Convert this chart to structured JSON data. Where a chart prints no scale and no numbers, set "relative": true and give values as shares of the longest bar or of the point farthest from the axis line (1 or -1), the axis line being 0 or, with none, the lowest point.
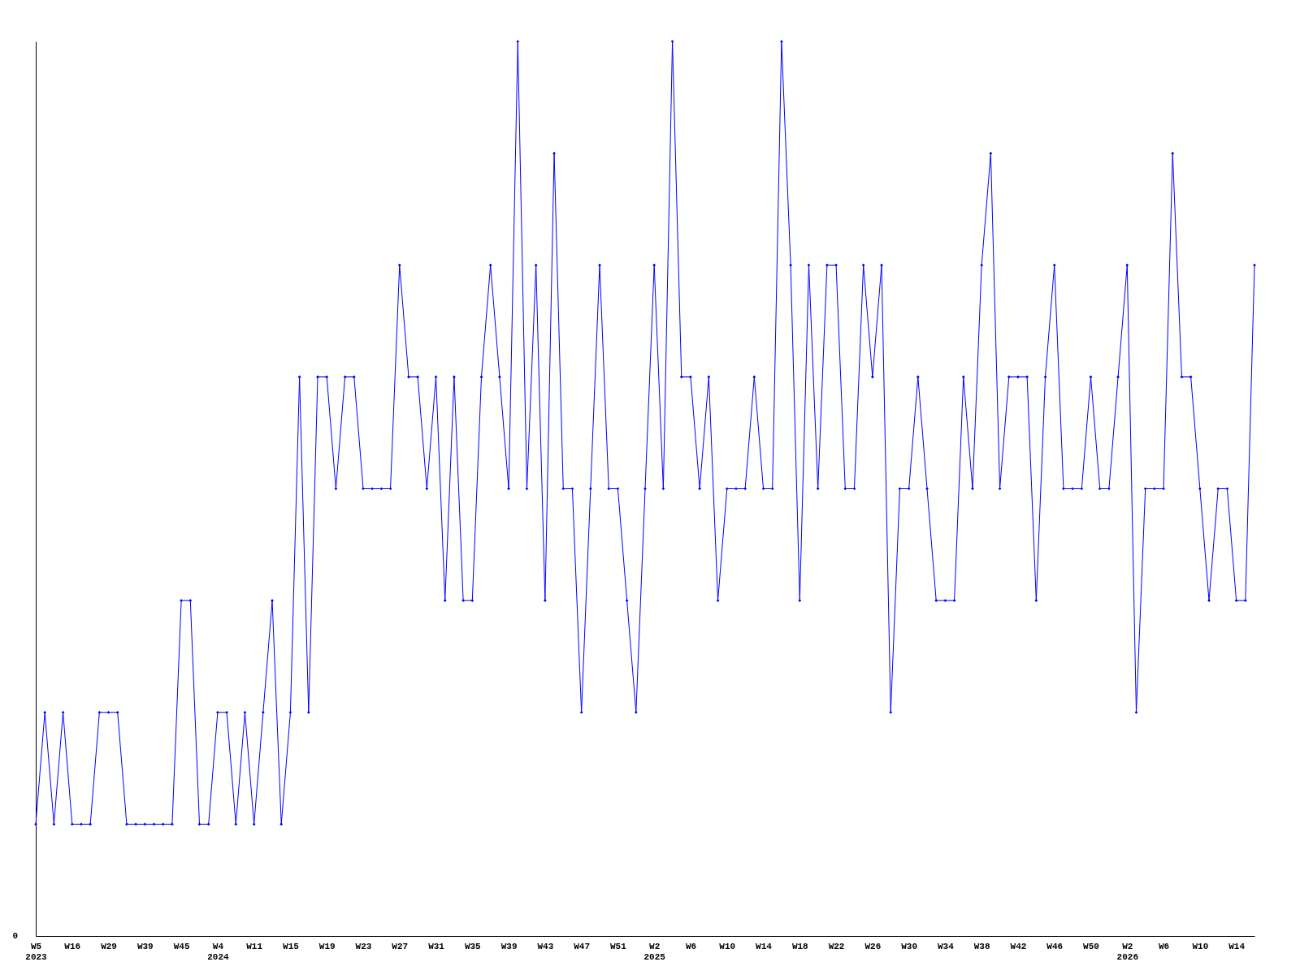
{
  "chart_data": {
    "type": "line",
    "relative": true,
    "marker": "diamond",
    "line_style": "solid",
    "grid": false,
    "categories": [
      "W5\n2023",
      null,
      null,
      null,
      "W16",
      null,
      null,
      null,
      "W29",
      null,
      null,
      null,
      "W39",
      null,
      null,
      null,
      "W45",
      null,
      null,
      null,
      "W4\n2024",
      null,
      null,
      null,
      "W11",
      null,
      null,
      null,
      "W15",
      null,
      null,
      null,
      "W19",
      null,
      null,
      null,
      "W23",
      null,
      null,
      null,
      "W27",
      null,
      null,
      null,
      "W31",
      null,
      null,
      null,
      "W35",
      null,
      null,
      null,
      "W39",
      null,
      null,
      null,
      "W43",
      null,
      null,
      null,
      "W47",
      null,
      null,
      null,
      "W51",
      null,
      null,
      null,
      "W2\n2025",
      null,
      null,
      null,
      "W6",
      null,
      null,
      null,
      "W10",
      null,
      null,
      null,
      "W14",
      null,
      null,
      null,
      "W18",
      null,
      null,
      null,
      "W22",
      null,
      null,
      null,
      "W26",
      null,
      null,
      null,
      "W30",
      null,
      null,
      null,
      "W34",
      null,
      null,
      null,
      "W38",
      null,
      null,
      null,
      "W42",
      null,
      null,
      null,
      "W46",
      null,
      null,
      null,
      "W50",
      null,
      null,
      null,
      "W2\n2026",
      null,
      null,
      null,
      "W6",
      null,
      null,
      null,
      "W10",
      null,
      null,
      null,
      "W14",
      null,
      null
    ],
    "series": [
      {
        "color": "#0000ff",
        "values": [
          0.125,
          0.25,
          0.125,
          0.25,
          0.125,
          0.125,
          0.125,
          0.25,
          0.25,
          0.25,
          0.125,
          0.125,
          0.125,
          0.125,
          0.125,
          0.125,
          0.375,
          0.375,
          0.125,
          0.125,
          0.25,
          0.25,
          0.125,
          0.25,
          0.125,
          0.25,
          0.375,
          0.125,
          0.25,
          0.625,
          0.25,
          0.625,
          0.625,
          0.5,
          0.625,
          0.625,
          0.5,
          0.5,
          0.5,
          0.5,
          0.75,
          0.625,
          0.625,
          0.5,
          0.625,
          0.375,
          0.625,
          0.375,
          0.375,
          0.625,
          0.75,
          0.625,
          0.5,
          1,
          0.5,
          0.75,
          0.375,
          0.875,
          0.5,
          0.5,
          0.25,
          0.5,
          0.75,
          0.5,
          0.5,
          0.375,
          0.25,
          0.5,
          0.75,
          0.5,
          1,
          0.625,
          0.625,
          0.5,
          0.625,
          0.375,
          0.5,
          0.5,
          0.5,
          0.625,
          0.5,
          0.5,
          1,
          0.75,
          0.375,
          0.75,
          0.5,
          0.75,
          0.75,
          0.5,
          0.5,
          0.75,
          0.625,
          0.75,
          0.25,
          0.5,
          0.5,
          0.625,
          0.5,
          0.375,
          0.375,
          0.375,
          0.625,
          0.5,
          0.75,
          0.875,
          0.5,
          0.625,
          0.625,
          0.625,
          0.375,
          0.625,
          0.75,
          0.5,
          0.5,
          0.5,
          0.625,
          0.5,
          0.5,
          0.625,
          0.75,
          0.25,
          0.5,
          0.5,
          0.5,
          0.875,
          0.625,
          0.625,
          0.5,
          0.375,
          0.5,
          0.5,
          0.375,
          0.375,
          0.75
        ]
      }
    ],
    "annotations": [
      "0"
    ]
  }
}
